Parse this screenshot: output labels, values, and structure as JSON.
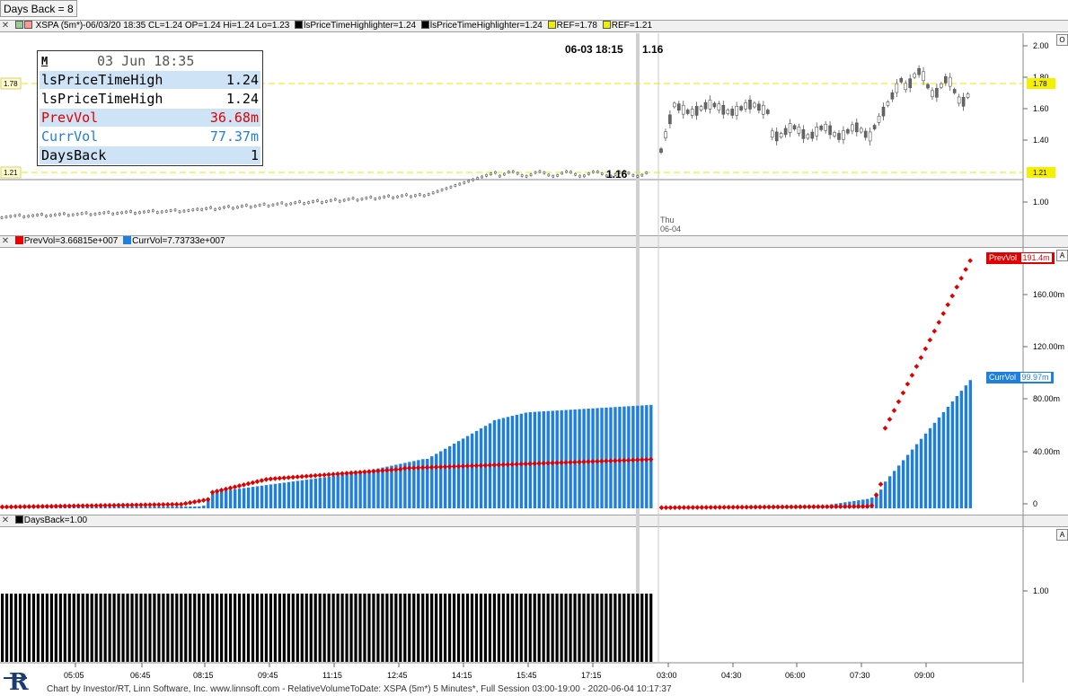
{
  "toolbar": {
    "days_back_label": "Days Back = 8"
  },
  "price_pane": {
    "header": {
      "symbol": "XSPA (5m*)-06/03/20 18:35 CL=1.24 OP=1.24 Hi=1.24 Lo=1.23",
      "hl1": "lsPriceTimeHighlighter=1.24",
      "hl2": "lsPriceTimeHighlighter=1.24",
      "ref1": "REF=1.78",
      "ref2": "REF=1.21"
    },
    "y_ticks": [
      "2.00",
      "1.80",
      "1.60",
      "1.40",
      "1.00"
    ],
    "ref_left_labels": [
      "1.78",
      "1.21"
    ],
    "ref_right_labels": [
      "1.78",
      "1.21"
    ],
    "annotation_top": "06-03 18:15",
    "annotation_top_value": "1.16",
    "annotation_low": "1.16",
    "day_label": "Thu",
    "day_date": "06-04",
    "info_box": {
      "title_mark": "M",
      "title": "03 Jun 18:35",
      "rows": [
        {
          "label": "lsPriceTimeHigh",
          "value": "1.24",
          "color": "#000000",
          "bg": "#cfe3f6"
        },
        {
          "label": "lsPriceTimeHigh",
          "value": "1.24",
          "color": "#000000",
          "bg": "#ffffff"
        },
        {
          "label": "PrevVol",
          "value": "36.68m",
          "color": "#e00000",
          "bg": "#cfe3f6"
        },
        {
          "label": "CurrVol",
          "value": "77.37m",
          "color": "#1f7fe0",
          "bg": "#ffffff"
        },
        {
          "label": "DaysBack",
          "value": "1",
          "color": "#000000",
          "bg": "#cfe3f6"
        }
      ]
    }
  },
  "volume_pane": {
    "header": {
      "prev": "PrevVol=3.66815e+007",
      "curr": "CurrVol=7.73733e+007"
    },
    "y_ticks": [
      "160.00m",
      "120.00m",
      "80.00m",
      "40.00m",
      "0"
    ],
    "prev_marker": "PrevVol",
    "prev_marker_value": "191.4m",
    "curr_marker": "CurrVol",
    "curr_marker_value": "99.97m",
    "a_button": "A"
  },
  "days_pane": {
    "header": {
      "label": "DaysBack=1.00"
    },
    "y_ticks": [
      "1.00"
    ],
    "a_button": "A"
  },
  "x_axis": {
    "ticks": [
      "05:05",
      "06:45",
      "08:15",
      "09:45",
      "11:15",
      "12:45",
      "14:15",
      "15:45",
      "17:15",
      "03:00",
      "04:30",
      "06:00",
      "07:30",
      "09:00"
    ]
  },
  "footer": {
    "text": "Chart by Investor/RT, Linn Software, Inc. www.linnsoft.com - RelativeVolumeToDate: XSPA (5m*) 5 Minutes*, Full Session 03:00-19:00 - 2020-06-04 10:17:37"
  },
  "colors": {
    "prev": "#e00000",
    "curr": "#1f7fe0",
    "ref": "#e8e800",
    "grid": "#e6e6e6"
  },
  "chart_data": [
    {
      "type": "line",
      "title": "XSPA (5m*) price",
      "x": [
        "05:05",
        "06:45",
        "08:15",
        "09:45",
        "11:15",
        "12:45",
        "14:15",
        "15:45",
        "17:15",
        "03:00",
        "04:30",
        "06:00",
        "07:30",
        "09:00"
      ],
      "series": [
        {
          "name": "Close",
          "values": [
            0.98,
            0.99,
            1.02,
            1.02,
            1.04,
            1.05,
            1.1,
            1.14,
            1.16,
            1.62,
            1.6,
            1.48,
            1.45,
            1.85
          ]
        }
      ],
      "reference_lines": [
        1.78,
        1.21
      ],
      "ylim": [
        0.95,
        2.05
      ]
    },
    {
      "type": "bar",
      "title": "",
      "x": [
        "05:05",
        "06:45",
        "08:15",
        "09:45",
        "11:15",
        "12:45",
        "14:15",
        "15:45",
        "17:15",
        "03:00",
        "04:30",
        "06:00",
        "07:30",
        "09:00"
      ],
      "series": [
        {
          "name": "CurrVol",
          "values": [
            0.5,
            1.0,
            2.0,
            20.0,
            27.0,
            37.0,
            50.0,
            72.0,
            77.4,
            0.5,
            1.0,
            2.5,
            4.0,
            88.0
          ]
        },
        {
          "name": "PrevVol",
          "values": [
            1.0,
            2.0,
            5.0,
            24.0,
            28.0,
            33.0,
            35.0,
            36.0,
            36.7,
            0.5,
            0.5,
            0.7,
            1.0,
            150.0
          ]
        }
      ],
      "ylim": [
        0,
        200
      ]
    },
    {
      "type": "bar",
      "title": "",
      "series": [
        {
          "name": "DaysBack",
          "values": [
            1
          ]
        }
      ],
      "ylim": [
        0,
        2
      ]
    }
  ]
}
